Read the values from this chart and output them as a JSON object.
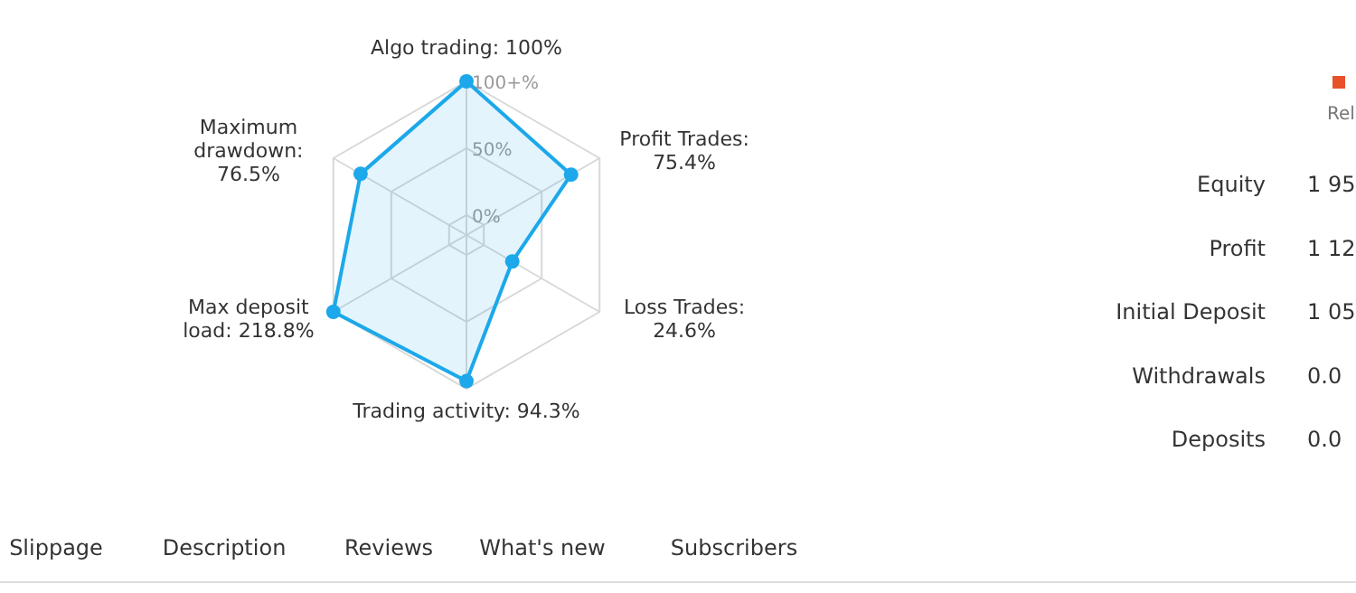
{
  "chart_data": [
    {
      "type": "radar",
      "categories": [
        "Algo trading: 100%",
        "Profit Trades: 75.4%",
        "Loss Trades: 24.6%",
        "Trading activity: 94.3%",
        "Max deposit load: 218.8%",
        "Maximum drawdown: 76.5%"
      ],
      "series": [
        {
          "color": "#1ca8ea",
          "values": [
            100,
            75.4,
            24.6,
            94.3,
            100,
            76.5
          ]
        }
      ],
      "ylim": [
        -15,
        100
      ],
      "yticks": [
        {
          "value": 0,
          "label": "0%"
        },
        {
          "value": 50,
          "label": "50%"
        },
        {
          "value": 100,
          "label": "100+%"
        }
      ],
      "grid": true
    },
    {
      "type": "other",
      "annotations": [
        "Reli",
        "Equity",
        "1 95",
        "Profit",
        "1 12",
        "Initial Deposit",
        "1 05",
        "Withdrawals",
        "0.0",
        "Deposits",
        "0.0",
        "Slippage",
        "Description",
        "Reviews",
        "What's new",
        "Subscribers"
      ]
    }
  ]
}
